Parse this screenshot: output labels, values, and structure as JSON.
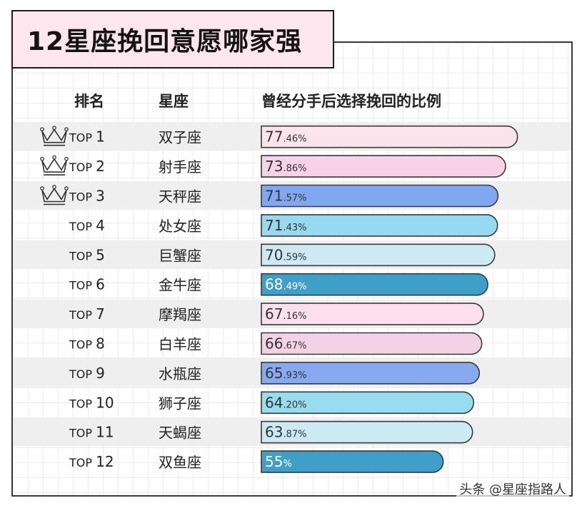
{
  "title": "12星座挽回意愿哪家强",
  "headers": {
    "rank": "排名",
    "sign": "星座",
    "value": "曾经分手后选择挽回的比例"
  },
  "watermark": "头条 @星座指路人",
  "colors": {
    "row_stripe": "#efefef",
    "bar_border": "#3a3a3a",
    "title_bg": "#fde6ee"
  },
  "chart_data": {
    "type": "bar",
    "orientation": "horizontal",
    "title": "12星座挽回意愿哪家强",
    "xlabel": "曾经分手后选择挽回的比例",
    "ylabel": "星座",
    "unit": "%",
    "ranks": [
      "TOP 1",
      "TOP 2",
      "TOP 3",
      "TOP 4",
      "TOP 5",
      "TOP 6",
      "TOP 7",
      "TOP 8",
      "TOP 9",
      "TOP 10",
      "TOP 11",
      "TOP 12"
    ],
    "categories": [
      "双子座",
      "射手座",
      "天秤座",
      "处女座",
      "巨蟹座",
      "金牛座",
      "摩羯座",
      "白羊座",
      "水瓶座",
      "狮子座",
      "天蝎座",
      "双鱼座"
    ],
    "values": [
      77.46,
      73.86,
      71.57,
      71.43,
      70.59,
      68.49,
      67.16,
      66.67,
      65.93,
      64.2,
      63.87,
      55
    ],
    "value_labels": [
      {
        "int": "77",
        "dec": ".46%"
      },
      {
        "int": "73",
        "dec": ".86%"
      },
      {
        "int": "71",
        "dec": ".57%"
      },
      {
        "int": "71",
        "dec": ".43%"
      },
      {
        "int": "70",
        "dec": ".59%"
      },
      {
        "int": "68",
        "dec": ".49%"
      },
      {
        "int": "67",
        "dec": ".16%"
      },
      {
        "int": "66",
        "dec": ".67%"
      },
      {
        "int": "65",
        "dec": ".93%"
      },
      {
        "int": "64",
        "dec": ".20%"
      },
      {
        "int": "63",
        "dec": ".87%"
      },
      {
        "int": "55",
        "dec": "%"
      }
    ],
    "bar_colors": [
      "#fde3ec",
      "#f7d2e8",
      "#7fa8f0",
      "#97d9ee",
      "#cce9f4",
      "#3f9fc8",
      "#fbe0ec",
      "#f4d2e6",
      "#86a9ef",
      "#98dcef",
      "#cde9f4",
      "#3f9fc8"
    ],
    "label_colors": [
      "#333333",
      "#333333",
      "#333333",
      "#333333",
      "#333333",
      "#ffffff",
      "#333333",
      "#333333",
      "#333333",
      "#333333",
      "#333333",
      "#ffffff"
    ],
    "crowned_ranks": [
      1,
      2,
      3
    ],
    "crown_icon": "crown-icon",
    "grid": true
  }
}
